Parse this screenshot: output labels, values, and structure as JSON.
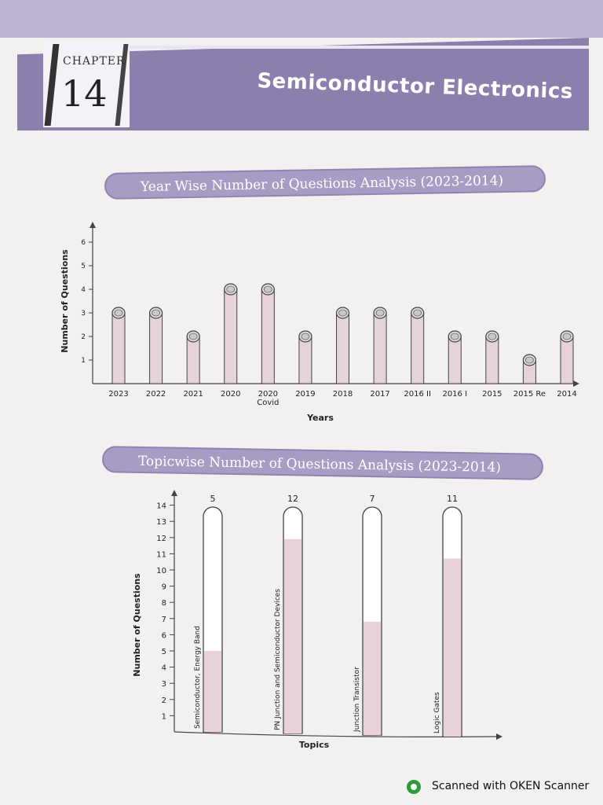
{
  "header": {
    "chapter_label": "CHAPTER",
    "chapter_number": "14",
    "title": "Semiconductor Electronics"
  },
  "section1": {
    "banner": "Year Wise Number of Questions Analysis (2023-2014)"
  },
  "section2": {
    "banner": "Topicwise Number of Questions Analysis (2023-2014)"
  },
  "footer": {
    "text": "Scanned with OKEN Scanner",
    "logo_icon": "oken-scanner-logo-icon"
  },
  "chart_data": [
    {
      "type": "bar",
      "title": "Year Wise Number of Questions Analysis (2023-2014)",
      "xlabel": "Years",
      "ylabel": "Number of Questions",
      "ylim": [
        0,
        6
      ],
      "yticks": [
        1,
        2,
        3,
        4,
        5,
        6
      ],
      "categories": [
        [
          "2023"
        ],
        [
          "2022"
        ],
        [
          "2021"
        ],
        [
          "2020"
        ],
        [
          "2020",
          "Covid"
        ],
        [
          "2019"
        ],
        [
          "2018"
        ],
        [
          "2017"
        ],
        [
          "2016 II"
        ],
        [
          "2016 I"
        ],
        [
          "2015"
        ],
        [
          "2015 Re"
        ],
        [
          "2014"
        ]
      ],
      "values": [
        3,
        3,
        2,
        4,
        4,
        2,
        3,
        3,
        3,
        2,
        2,
        1,
        2
      ],
      "grid": false,
      "colors": {
        "bar": "#e6d3d8",
        "cap": "#c9c9c9",
        "outline": "#444444"
      }
    },
    {
      "type": "bar",
      "title": "Topicwise Number of Questions Analysis (2023-2014)",
      "xlabel": "Topics",
      "ylabel": "Number of Questions",
      "ylim": [
        0,
        14
      ],
      "yticks": [
        1,
        2,
        3,
        4,
        5,
        6,
        7,
        8,
        9,
        10,
        11,
        12,
        13,
        14
      ],
      "categories": [
        "Semiconductor, Energy Band",
        "PN Junction and Semiconductor Devices",
        "Junction Transistor",
        "Logic Gates"
      ],
      "values": [
        5,
        12,
        7,
        11
      ],
      "grid": false,
      "colors": {
        "fill": "#e8d2d7",
        "tube": "#ffffff",
        "outline": "#444444"
      }
    }
  ]
}
